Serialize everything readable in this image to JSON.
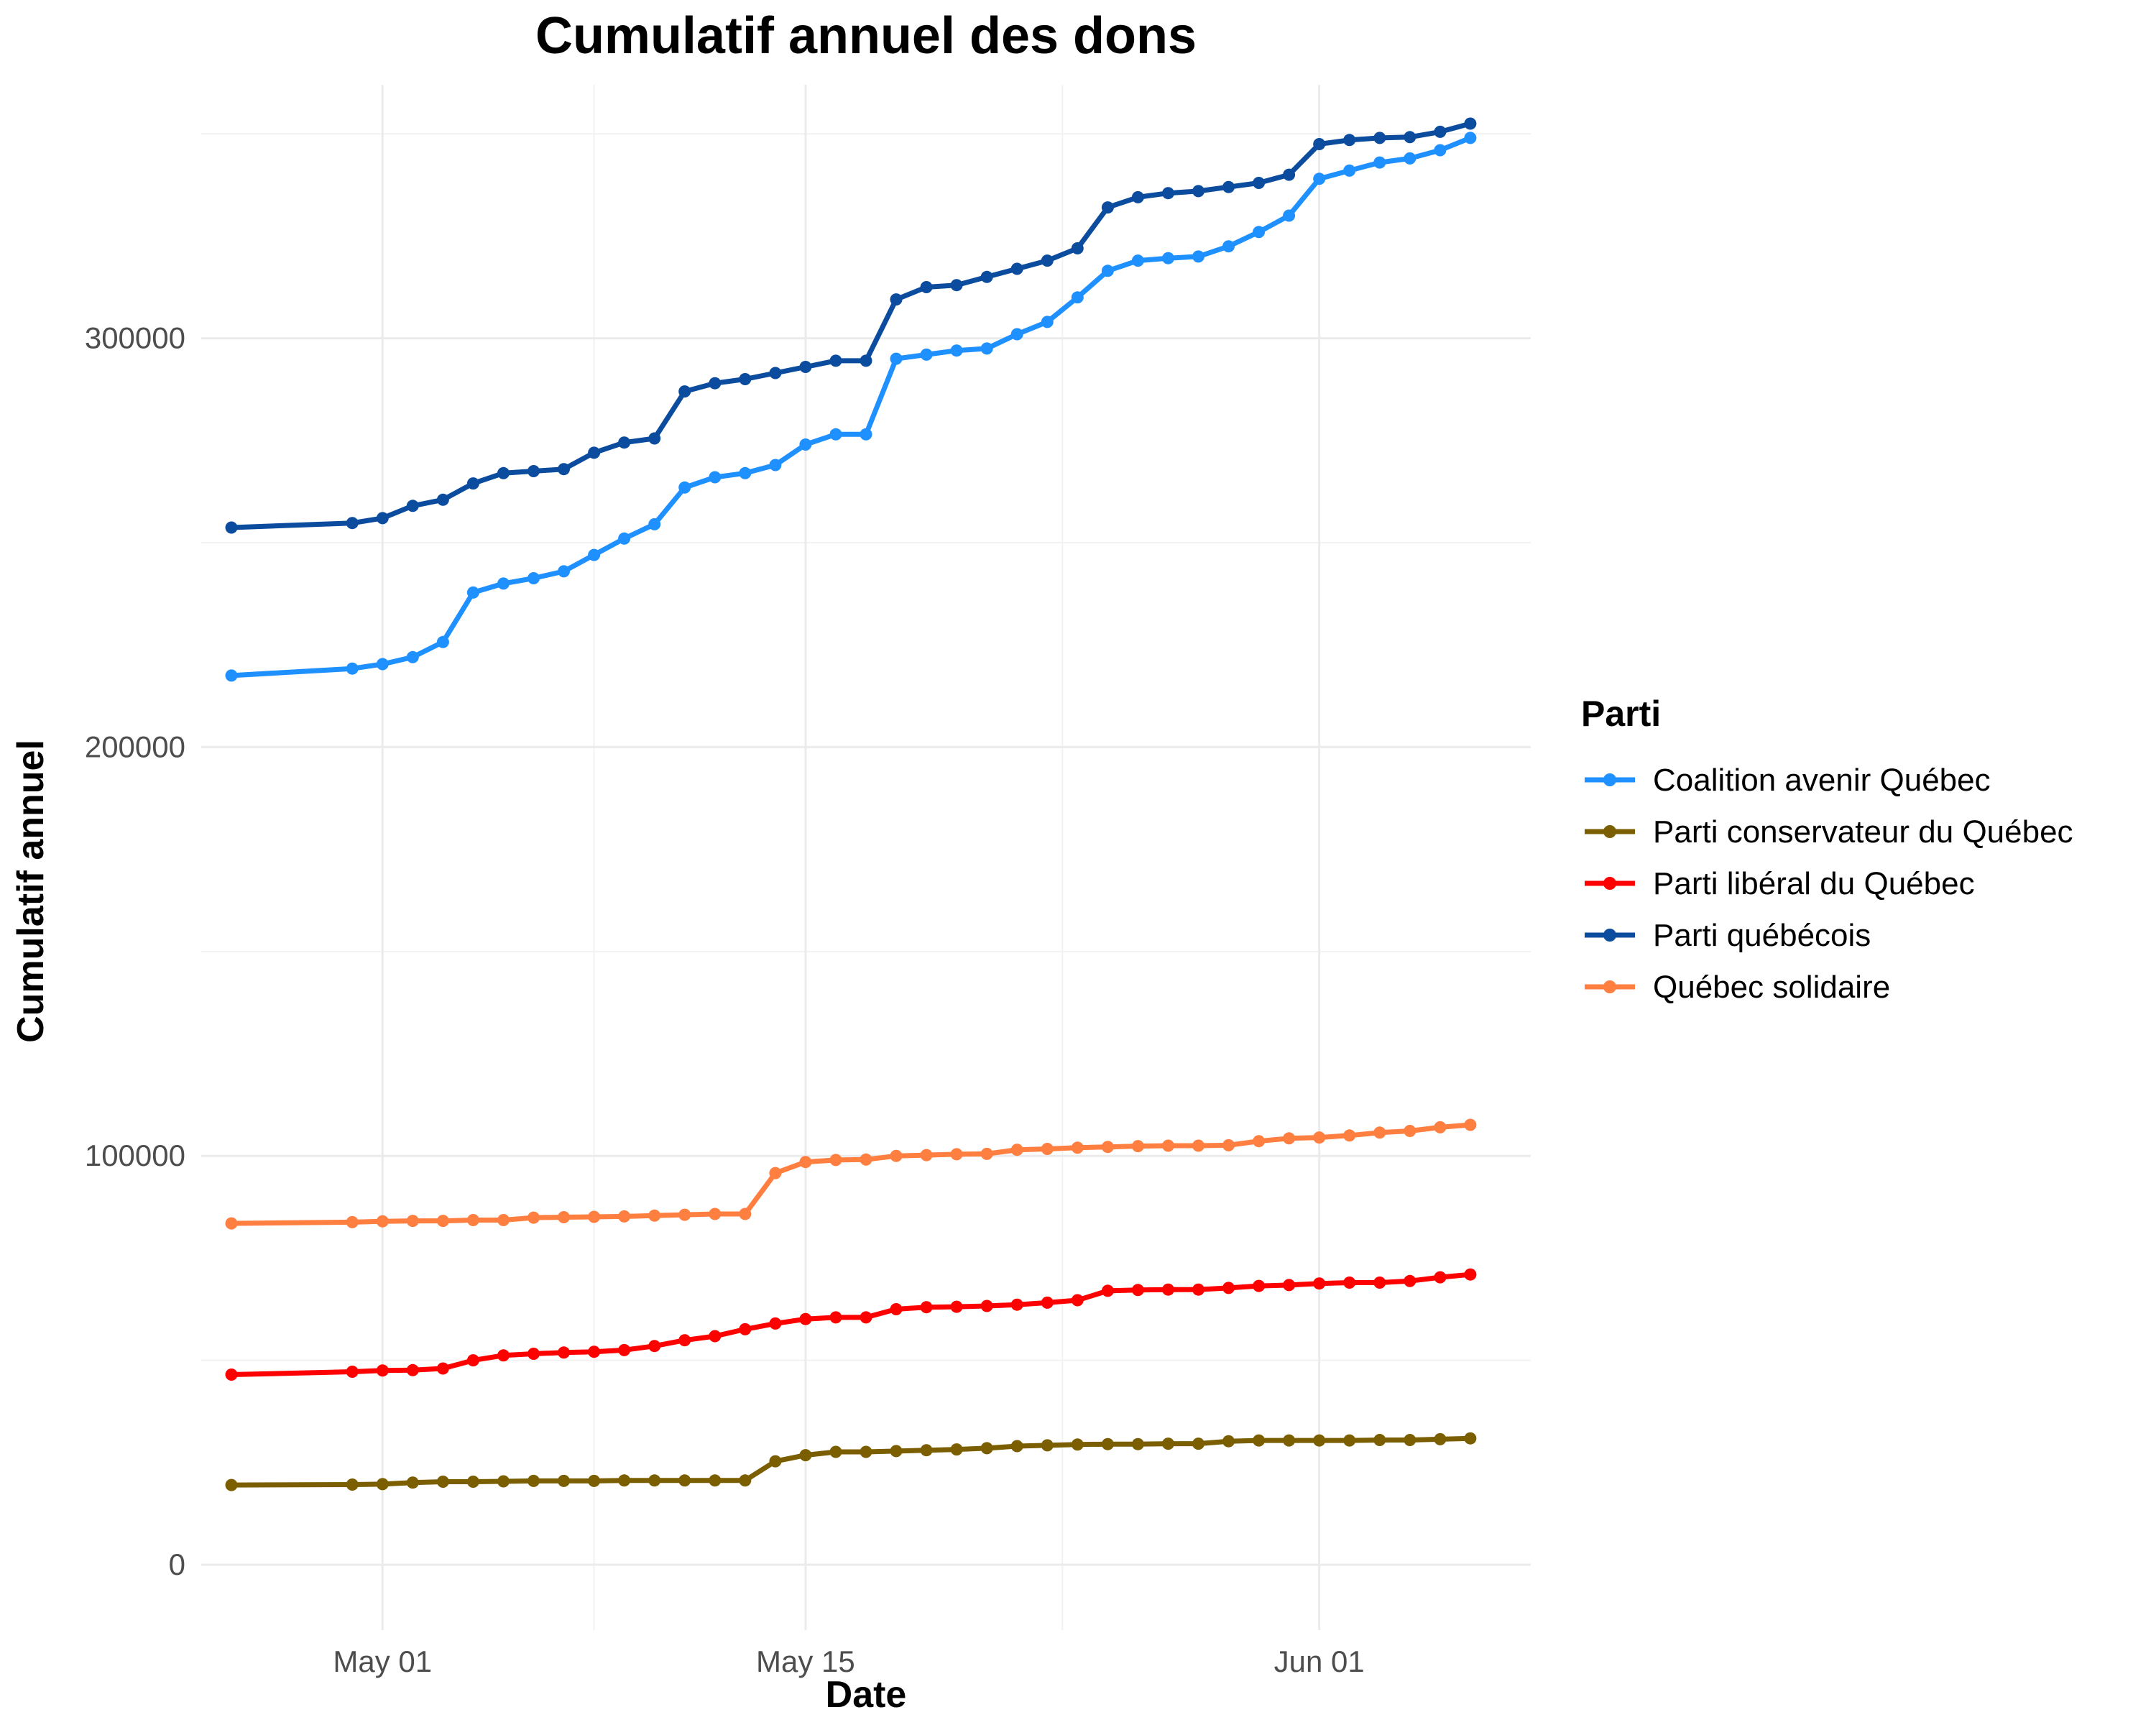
{
  "chart_data": {
    "type": "line",
    "title": "Cumulatif annuel des dons",
    "xlabel": "Date",
    "ylabel": "Cumulatif annuel",
    "legend_title": "Parti",
    "legend_position": "right",
    "grid": true,
    "ylim": [
      -16000,
      362000
    ],
    "xlim": [
      "2018-04-25",
      "2018-06-08"
    ],
    "y_ticks": [
      {
        "value": 0,
        "label": "0"
      },
      {
        "value": 100000,
        "label": "100000"
      },
      {
        "value": 200000,
        "label": "200000"
      },
      {
        "value": 300000,
        "label": "300000"
      }
    ],
    "x_ticks": [
      {
        "date": "2018-05-01",
        "label": "May 01"
      },
      {
        "date": "2018-05-15",
        "label": "May 15"
      },
      {
        "date": "2018-06-01",
        "label": "Jun 01"
      }
    ],
    "x": [
      "2018-04-26",
      "2018-04-30",
      "2018-05-01",
      "2018-05-02",
      "2018-05-03",
      "2018-05-04",
      "2018-05-05",
      "2018-05-06",
      "2018-05-07",
      "2018-05-08",
      "2018-05-09",
      "2018-05-10",
      "2018-05-11",
      "2018-05-12",
      "2018-05-13",
      "2018-05-14",
      "2018-05-15",
      "2018-05-16",
      "2018-05-17",
      "2018-05-18",
      "2018-05-19",
      "2018-05-20",
      "2018-05-21",
      "2018-05-22",
      "2018-05-23",
      "2018-05-24",
      "2018-05-25",
      "2018-05-26",
      "2018-05-27",
      "2018-05-28",
      "2018-05-29",
      "2018-05-30",
      "2018-05-31",
      "2018-06-01",
      "2018-06-02",
      "2018-06-03",
      "2018-06-04",
      "2018-06-05",
      "2018-06-06"
    ],
    "series": [
      {
        "name": "Coalition avenir Québec",
        "color": "#1E90FF",
        "values": [
          217500,
          219200,
          220300,
          222000,
          225700,
          237800,
          240000,
          241300,
          243000,
          247000,
          251000,
          254500,
          263500,
          266000,
          267000,
          269000,
          274000,
          276500,
          276500,
          295000,
          296000,
          297000,
          297500,
          301000,
          304000,
          310000,
          316500,
          319000,
          319600,
          320000,
          322500,
          326000,
          330000,
          339000,
          341000,
          343000,
          344000,
          346000,
          349000
        ]
      },
      {
        "name": "Parti conservateur du Québec",
        "color": "#7B5E00",
        "values": [
          19500,
          19600,
          19700,
          20100,
          20300,
          20300,
          20400,
          20500,
          20500,
          20500,
          20600,
          20600,
          20600,
          20600,
          20600,
          25300,
          26800,
          27600,
          27600,
          27800,
          28000,
          28200,
          28500,
          29000,
          29200,
          29400,
          29500,
          29500,
          29600,
          29600,
          30200,
          30400,
          30400,
          30400,
          30400,
          30500,
          30500,
          30700,
          30900
        ]
      },
      {
        "name": "Parti libéral du Québec",
        "color": "#FF0000",
        "values": [
          46500,
          47200,
          47500,
          47600,
          48000,
          50000,
          51200,
          51600,
          51900,
          52100,
          52500,
          53500,
          54900,
          55900,
          57600,
          59000,
          60100,
          60500,
          60500,
          62500,
          63000,
          63100,
          63300,
          63600,
          64100,
          64700,
          67000,
          67200,
          67300,
          67300,
          67700,
          68200,
          68400,
          68800,
          69000,
          69000,
          69400,
          70300,
          71000
        ]
      },
      {
        "name": "Parti québécois",
        "color": "#0B4C9F",
        "values": [
          253700,
          254800,
          256000,
          259000,
          260500,
          264500,
          267000,
          267500,
          268000,
          272000,
          274500,
          275500,
          287000,
          289000,
          290000,
          291500,
          293000,
          294500,
          294500,
          309500,
          312500,
          313000,
          315000,
          317000,
          319000,
          322000,
          332000,
          334500,
          335500,
          336000,
          337000,
          338000,
          340000,
          347500,
          348500,
          349000,
          349200,
          350500,
          352500
        ]
      },
      {
        "name": "Québec solidaire",
        "color": "#FF7F41",
        "values": [
          83500,
          83800,
          84000,
          84100,
          84100,
          84300,
          84300,
          84900,
          85000,
          85100,
          85200,
          85400,
          85600,
          85800,
          85800,
          95800,
          98500,
          99000,
          99100,
          100000,
          100200,
          100400,
          100500,
          101500,
          101700,
          102000,
          102200,
          102400,
          102500,
          102500,
          102600,
          103600,
          104300,
          104500,
          105000,
          105700,
          106100,
          107000,
          107600
        ]
      }
    ]
  }
}
